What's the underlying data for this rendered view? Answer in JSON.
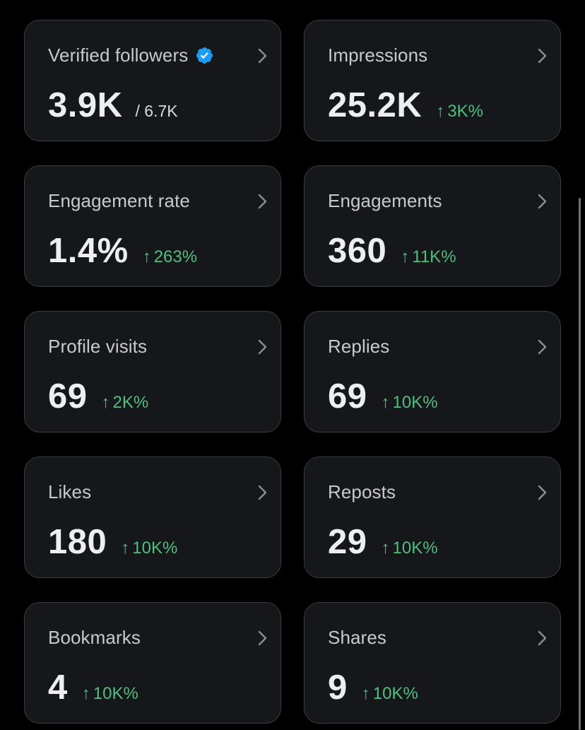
{
  "cards": [
    {
      "label": "Verified followers",
      "value": "3.9K",
      "total": "/ 6.7K",
      "change": ""
    },
    {
      "label": "Impressions",
      "value": "25.2K",
      "total": "",
      "change": "3K%"
    },
    {
      "label": "Engagement rate",
      "value": "1.4%",
      "total": "",
      "change": "263%"
    },
    {
      "label": "Engagements",
      "value": "360",
      "total": "",
      "change": "11K%"
    },
    {
      "label": "Profile visits",
      "value": "69",
      "total": "",
      "change": "2K%"
    },
    {
      "label": "Replies",
      "value": "69",
      "total": "",
      "change": "10K%"
    },
    {
      "label": "Likes",
      "value": "180",
      "total": "",
      "change": "10K%"
    },
    {
      "label": "Reposts",
      "value": "29",
      "total": "",
      "change": "10K%"
    },
    {
      "label": "Bookmarks",
      "value": "4",
      "total": "",
      "change": "10K%"
    },
    {
      "label": "Shares",
      "value": "9",
      "total": "",
      "change": "10K%"
    }
  ],
  "icons": {
    "verified": "verified-badge-icon",
    "chevron": "chevron-right-icon",
    "arrow": "arrow-up-icon"
  },
  "colors": {
    "background": "#000000",
    "card": "#16171b",
    "border": "#3a3c40",
    "positive": "#4fbe7e",
    "verified": "#1d9bf0"
  }
}
